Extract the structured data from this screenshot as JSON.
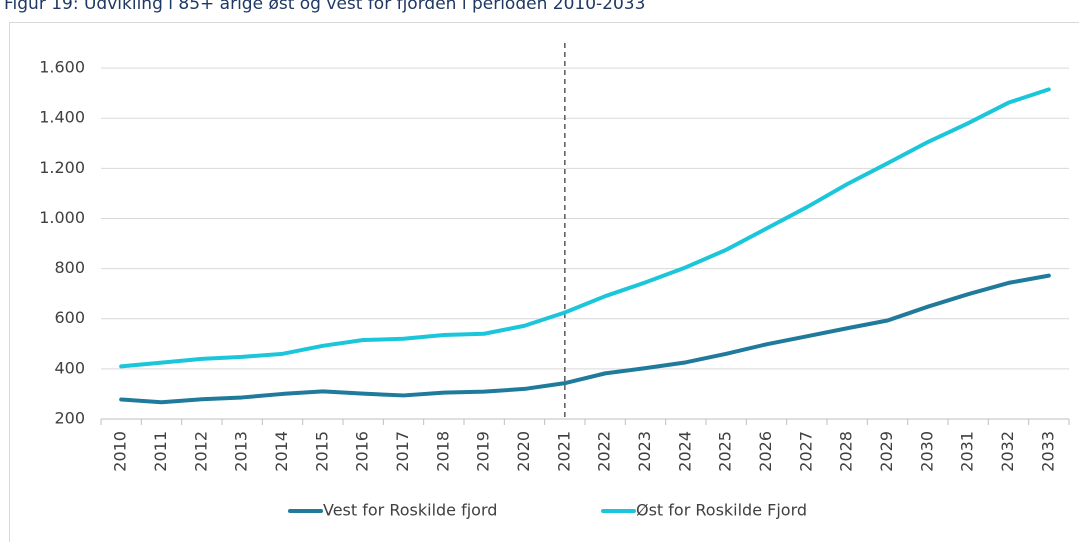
{
  "chart_data": {
    "type": "line",
    "title": "Figur 19: Udvikling i 85+ årige øst og vest for fjorden i perioden 2010-2033",
    "categories": [
      "2010",
      "2011",
      "2012",
      "2013",
      "2014",
      "2015",
      "2016",
      "2017",
      "2018",
      "2019",
      "2020",
      "2021",
      "2022",
      "2023",
      "2024",
      "2025",
      "2026",
      "2027",
      "2028",
      "2029",
      "2030",
      "2031",
      "2032",
      "2033"
    ],
    "series": [
      {
        "name": "Vest for Roskilde fjord",
        "color": "#1f7a9c",
        "values": [
          278,
          267,
          279,
          286,
          300,
          310,
          301,
          294,
          305,
          309,
          320,
          343,
          382,
          403,
          426,
          460,
          498,
          530,
          562,
          593,
          648,
          698,
          743,
          772
        ]
      },
      {
        "name": "Øst for Roskilde Fjord",
        "color": "#1cc6da",
        "values": [
          410,
          425,
          440,
          448,
          460,
          492,
          515,
          520,
          535,
          540,
          572,
          625,
          690,
          745,
          805,
          875,
          960,
          1045,
          1137,
          1220,
          1305,
          1380,
          1462,
          1515
        ]
      }
    ],
    "ylim": [
      200,
      1700
    ],
    "yticks": [
      200,
      400,
      600,
      800,
      {
        "value": 1000,
        "label": "1.000"
      },
      {
        "value": 1200,
        "label": "1.200"
      },
      {
        "value": 1400,
        "label": "1.400"
      },
      {
        "value": 1600,
        "label": "1.600"
      }
    ],
    "grid": true,
    "reference_line": "2021",
    "legend": "bottom"
  }
}
